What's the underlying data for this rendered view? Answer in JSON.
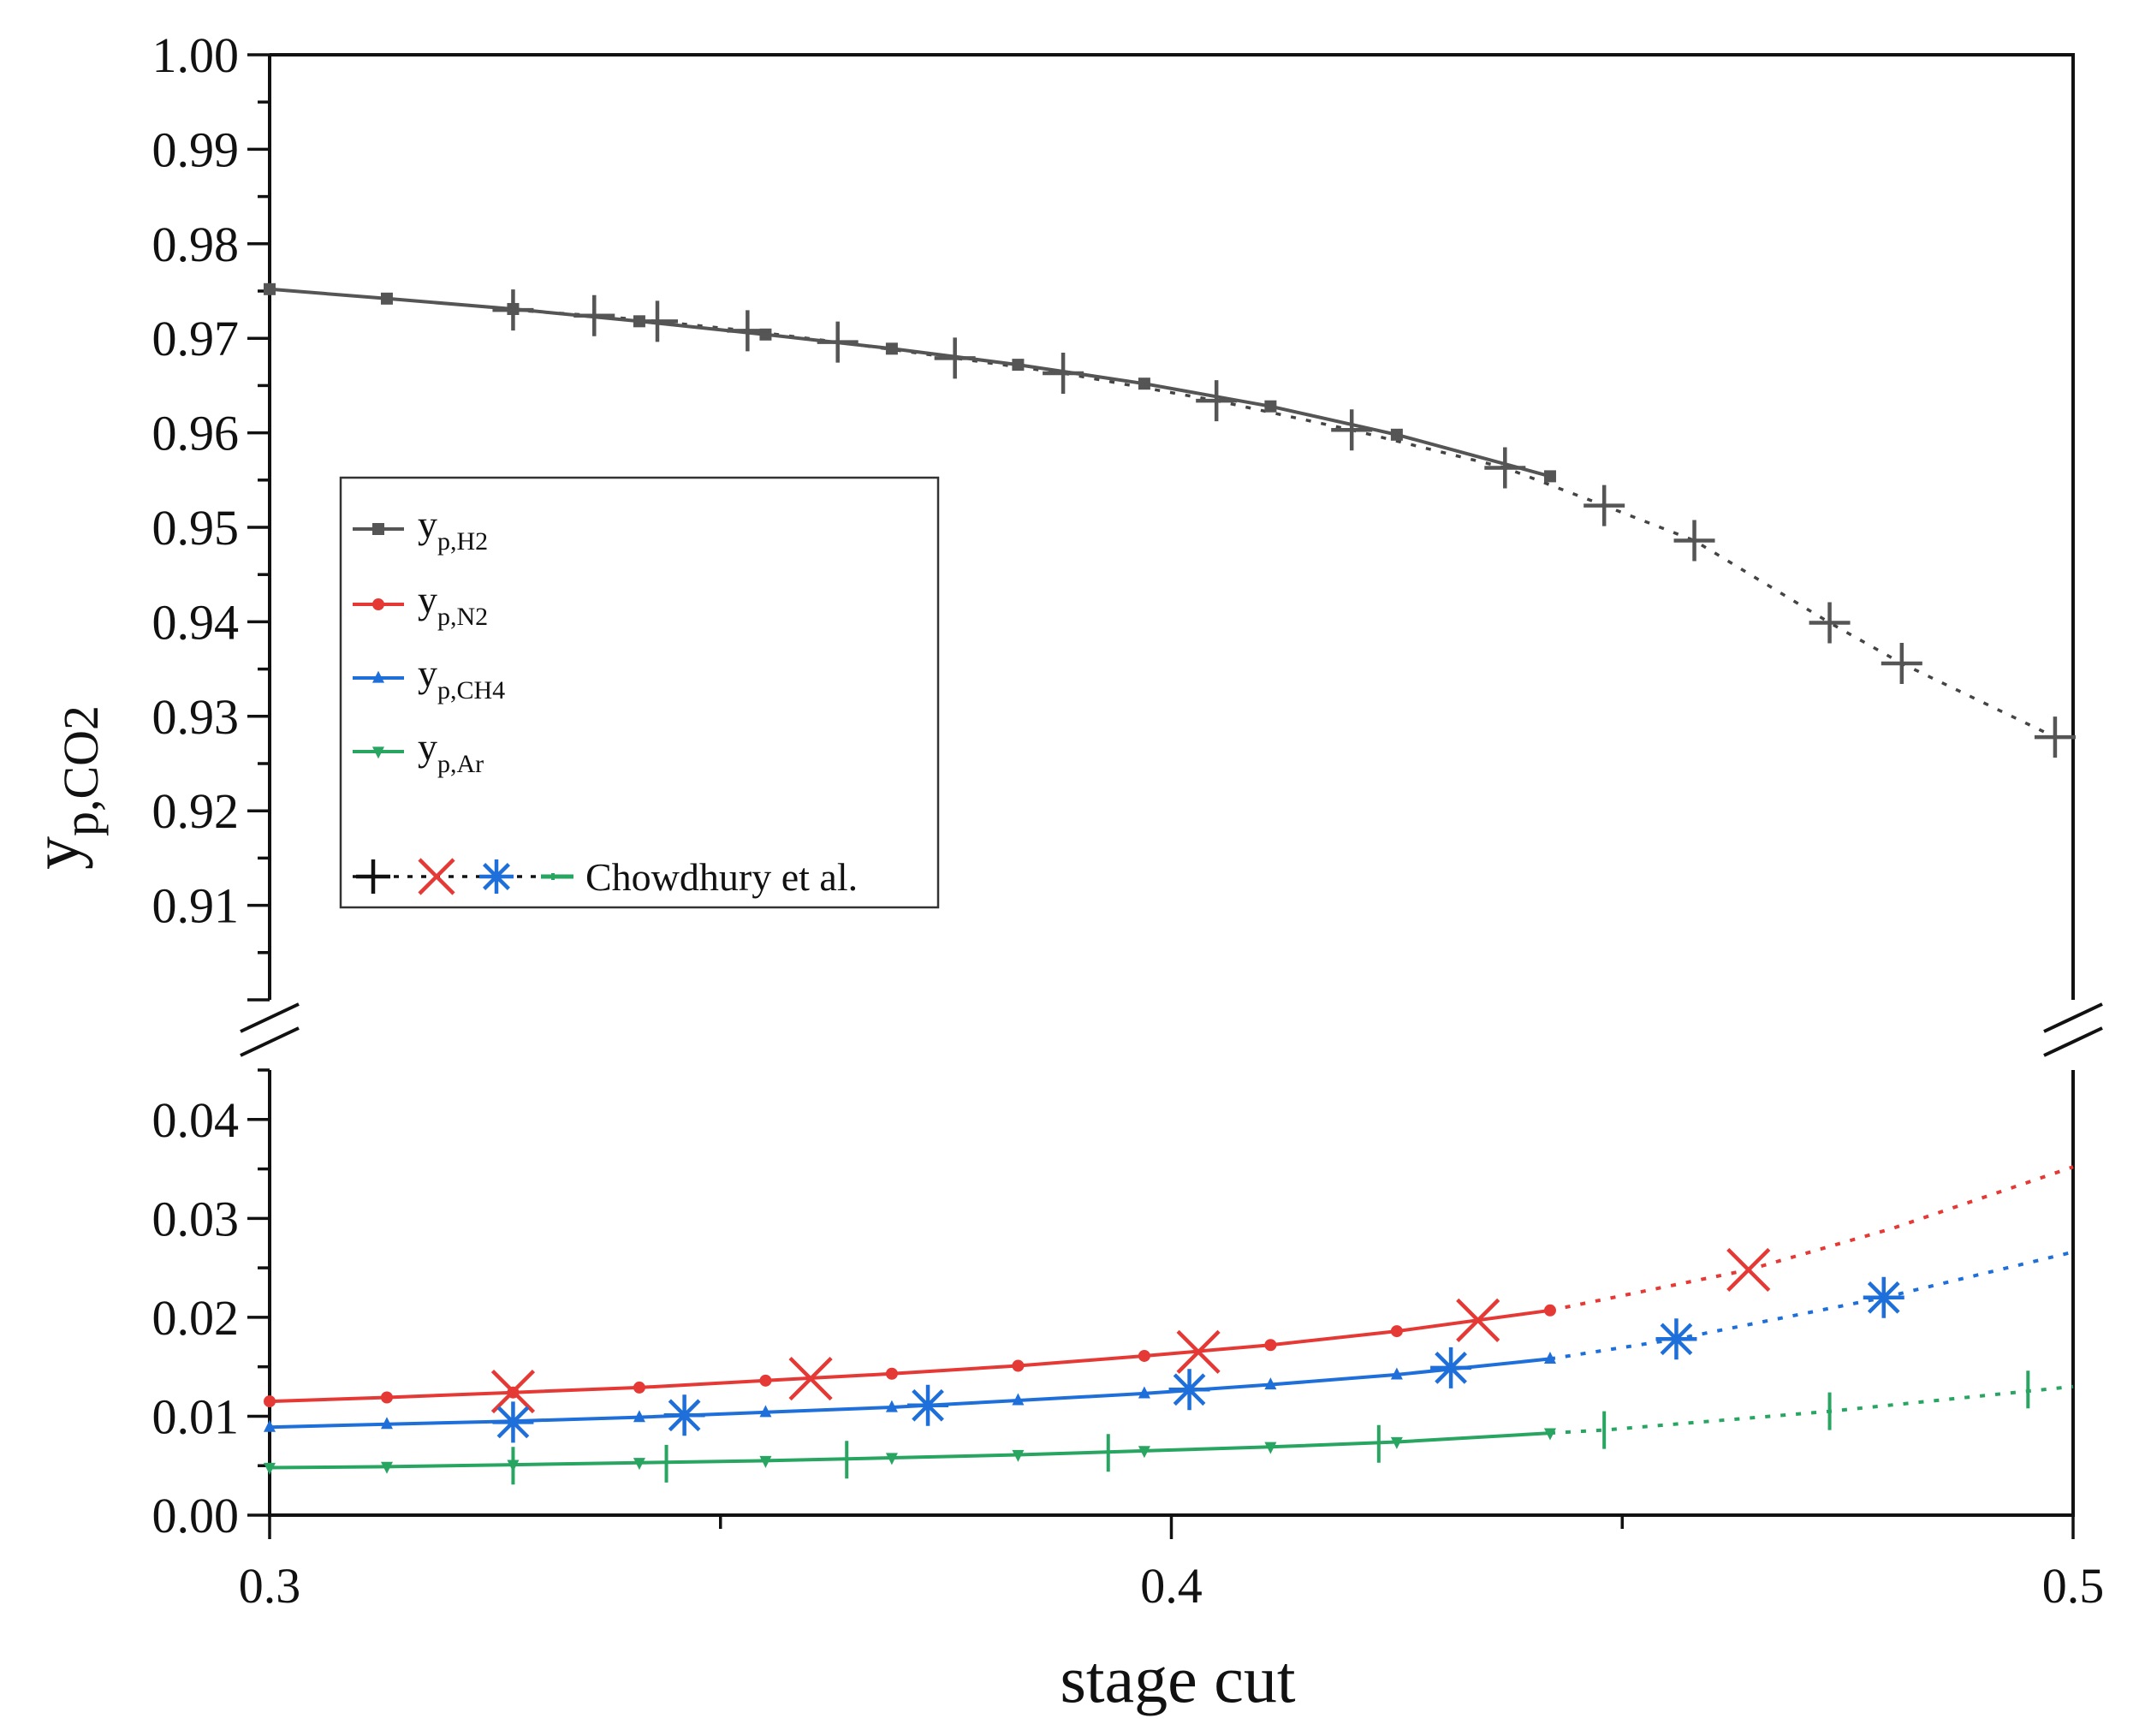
{
  "chart_data": {
    "type": "line",
    "xlabel": "stage cut",
    "ylabel_main": "y",
    "ylabel_sub": "p,CO2",
    "xlim": [
      0.3,
      0.5
    ],
    "x_ticks": [
      0.3,
      0.4,
      0.5
    ],
    "x_tick_labels": [
      "0.3",
      "0.4",
      "0.5"
    ],
    "x_minor_ticks": [
      0.35,
      0.45
    ],
    "axis_break": true,
    "upper_panel": {
      "ylim": [
        0.9,
        1.0
      ],
      "y_ticks": [
        0.91,
        0.92,
        0.93,
        0.94,
        0.95,
        0.96,
        0.97,
        0.98,
        0.99,
        1.0
      ],
      "y_tick_labels": [
        "0.91",
        "0.92",
        "0.93",
        "0.94",
        "0.95",
        "0.96",
        "0.97",
        "0.98",
        "0.99",
        "1.00"
      ]
    },
    "lower_panel": {
      "ylim": [
        0.0,
        0.045
      ],
      "y_ticks": [
        0.0,
        0.01,
        0.02,
        0.03,
        0.04
      ],
      "y_tick_labels": [
        "0.00",
        "0.01",
        "0.02",
        "0.03",
        "0.04"
      ]
    },
    "series": [
      {
        "name": "y",
        "sub": "p,H2",
        "color": "#555555",
        "marker": "square",
        "panel": "upper",
        "x": [
          0.3,
          0.313,
          0.327,
          0.341,
          0.355,
          0.369,
          0.383,
          0.397,
          0.411,
          0.425,
          0.442
        ],
        "y": [
          0.9752,
          0.9742,
          0.9731,
          0.9718,
          0.9704,
          0.9689,
          0.9672,
          0.9652,
          0.9628,
          0.9598,
          0.9554
        ]
      },
      {
        "name": "y",
        "sub": "p,N2",
        "color": "#e53935",
        "marker": "circle",
        "panel": "lower",
        "x": [
          0.3,
          0.313,
          0.327,
          0.341,
          0.355,
          0.369,
          0.383,
          0.397,
          0.411,
          0.425,
          0.442
        ],
        "y": [
          0.0115,
          0.0119,
          0.0124,
          0.0129,
          0.0136,
          0.0143,
          0.0151,
          0.0161,
          0.0172,
          0.0186,
          0.0207
        ]
      },
      {
        "name": "y",
        "sub": "p,CH4",
        "color": "#1e6fd9",
        "marker": "triangle-up",
        "panel": "lower",
        "x": [
          0.3,
          0.313,
          0.327,
          0.341,
          0.355,
          0.369,
          0.383,
          0.397,
          0.411,
          0.425,
          0.442
        ],
        "y": [
          0.0089,
          0.0092,
          0.0095,
          0.0099,
          0.0104,
          0.0109,
          0.0116,
          0.0123,
          0.0132,
          0.0142,
          0.0158
        ]
      },
      {
        "name": "y",
        "sub": "p,Ar",
        "color": "#27a561",
        "marker": "triangle-down",
        "panel": "lower",
        "x": [
          0.3,
          0.313,
          0.327,
          0.341,
          0.355,
          0.369,
          0.383,
          0.397,
          0.411,
          0.425,
          0.442
        ],
        "y": [
          0.0048,
          0.0049,
          0.0051,
          0.0053,
          0.0055,
          0.0058,
          0.0061,
          0.0065,
          0.0069,
          0.0074,
          0.0083
        ]
      }
    ],
    "reference": {
      "label": "Chowdhury et al.",
      "series": [
        {
          "for": "H2",
          "color": "#555555",
          "marker": "plus",
          "panel": "upper",
          "x": [
            0.327,
            0.336,
            0.343,
            0.353,
            0.363,
            0.376,
            0.388,
            0.405,
            0.42,
            0.437,
            0.448,
            0.458,
            0.473,
            0.481,
            0.498
          ],
          "y": [
            0.973,
            0.9724,
            0.9718,
            0.9708,
            0.9696,
            0.9679,
            0.9663,
            0.9634,
            0.9603,
            0.9563,
            0.9523,
            0.9486,
            0.9399,
            0.9356,
            0.9278
          ]
        },
        {
          "for": "N2",
          "color": "#e53935",
          "marker": "x",
          "panel": "lower",
          "x": [
            0.327,
            0.36,
            0.403,
            0.434,
            0.464
          ],
          "y": [
            0.0125,
            0.0138,
            0.0165,
            0.0197,
            0.0248
          ]
        },
        {
          "for": "CH4",
          "color": "#1e6fd9",
          "marker": "asterisk",
          "panel": "lower",
          "x": [
            0.327,
            0.346,
            0.373,
            0.402,
            0.431,
            0.456,
            0.479
          ],
          "y": [
            0.0094,
            0.0101,
            0.0111,
            0.0127,
            0.0149,
            0.0178,
            0.022
          ]
        },
        {
          "for": "Ar",
          "color": "#27a561",
          "marker": "vbar",
          "panel": "lower",
          "x": [
            0.327,
            0.344,
            0.364,
            0.393,
            0.423,
            0.448,
            0.473,
            0.495
          ],
          "y": [
            0.005,
            0.0052,
            0.0056,
            0.0063,
            0.0072,
            0.0086,
            0.0105,
            0.0127
          ]
        }
      ]
    },
    "reference_extension": {
      "N2": {
        "x": [
          0.442,
          0.464,
          0.48,
          0.5
        ],
        "y": [
          0.0207,
          0.0248,
          0.029,
          0.0352
        ]
      },
      "CH4": {
        "x": [
          0.442,
          0.456,
          0.479,
          0.5
        ],
        "y": [
          0.0158,
          0.0178,
          0.022,
          0.0266
        ]
      },
      "Ar": {
        "x": [
          0.442,
          0.448,
          0.473,
          0.5
        ],
        "y": [
          0.0083,
          0.0086,
          0.0105,
          0.013
        ]
      }
    },
    "legend_position": "left"
  }
}
